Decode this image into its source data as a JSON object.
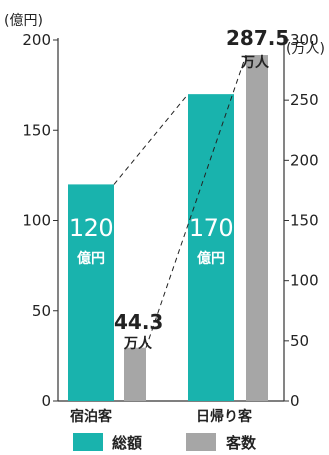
{
  "chart_data": {
    "type": "bar",
    "categories": [
      "宿泊客",
      "日帰り客"
    ],
    "series": [
      {
        "name": "総額",
        "axis": "left",
        "unit": "億円",
        "values": [
          120,
          170
        ],
        "color": "#19b3ad"
      },
      {
        "name": "客数",
        "axis": "right",
        "unit": "万人",
        "values": [
          44.3,
          287.5
        ],
        "color": "#a6a6a6"
      }
    ],
    "left_axis": {
      "unit_label": "(億円)",
      "ylim": [
        0,
        200
      ],
      "ticks": [
        "0",
        "50",
        "100",
        "150",
        "200"
      ]
    },
    "right_axis": {
      "unit_label": "(万人)",
      "ylim": [
        0,
        300
      ],
      "ticks": [
        "0",
        "50",
        "100",
        "150",
        "200",
        "250",
        "300"
      ]
    },
    "bar_labels": {
      "total": [
        {
          "value": "120",
          "unit": "億円"
        },
        {
          "value": "170",
          "unit": "億円"
        }
      ],
      "count": [
        {
          "value": "44.3",
          "unit": "万人"
        },
        {
          "value": "287.5",
          "unit": "万人"
        }
      ]
    },
    "connector_lines": "dashed",
    "legend": {
      "position": "bottom",
      "items": [
        "総額",
        "客数"
      ]
    }
  }
}
